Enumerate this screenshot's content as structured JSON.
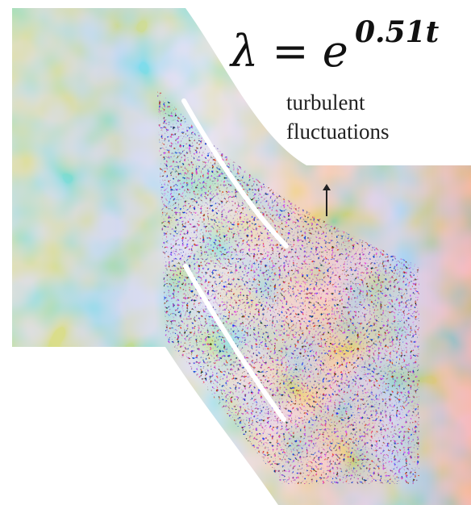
{
  "equation": {
    "base": "λ = e",
    "exponent": "0.51t"
  },
  "annotation": {
    "lines": [
      "turbulent",
      "fluctuations"
    ]
  }
}
